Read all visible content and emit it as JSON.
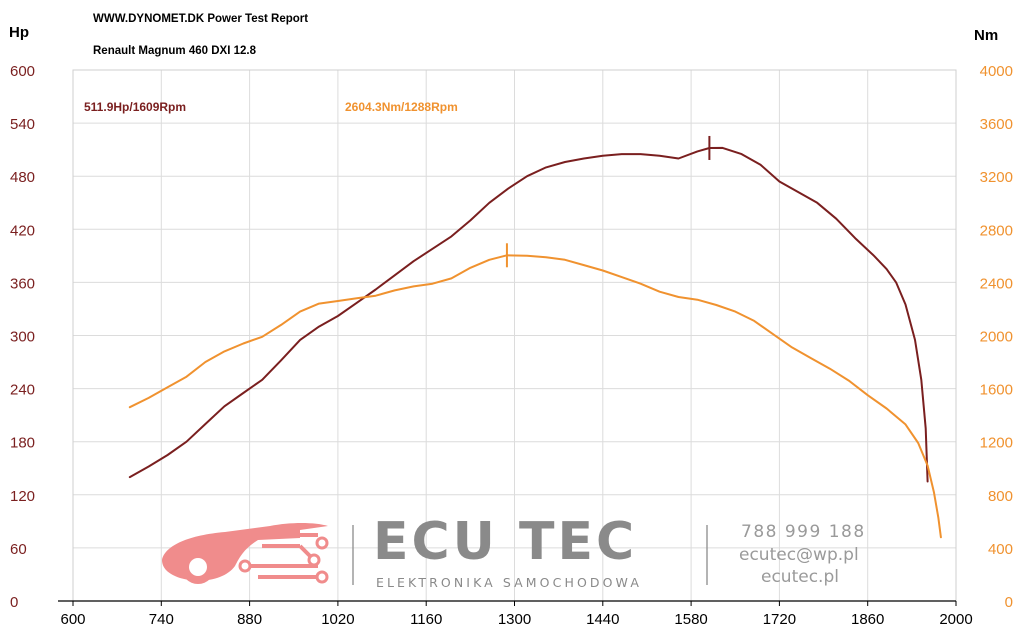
{
  "header": {
    "title": "WWW.DYNOMET.DK  Power Test Report",
    "vehicle": "Renault Magnum 460 DXI 12.8"
  },
  "watermark": {
    "brand": "ECU TEC",
    "tagline": "ELEKTRONIKA SAMOCHODOWA",
    "phone": "788 999 188",
    "email": "ecutec@wp.pl",
    "website": "ecutec.pl",
    "logo_icon": "car-circuit-logo-icon",
    "logo_color": "#f08c8c"
  },
  "chart_data": {
    "type": "line",
    "x_axis": {
      "range": [
        600,
        2000
      ],
      "ticks": [
        600,
        740,
        880,
        1020,
        1160,
        1300,
        1440,
        1580,
        1720,
        1860,
        2000
      ],
      "grid": true
    },
    "y_axis_left": {
      "unit_label": "Hp",
      "range": [
        0,
        600
      ],
      "ticks": [
        0,
        60,
        120,
        180,
        240,
        300,
        360,
        420,
        480,
        540,
        600
      ],
      "color": "#7a1f1f"
    },
    "y_axis_right": {
      "unit_label": "Nm",
      "range": [
        0,
        4000
      ],
      "ticks": [
        0,
        400,
        800,
        1200,
        1600,
        2000,
        2400,
        2800,
        3200,
        3600,
        4000
      ],
      "color": "#f0922f"
    },
    "series": [
      {
        "key": "power",
        "axis": "left",
        "color": "#7a1f1f",
        "peak_label": "511.9Hp/1609Rpm",
        "peak": {
          "x": 1609,
          "y": 511.9
        },
        "points": [
          [
            690,
            140
          ],
          [
            720,
            152
          ],
          [
            750,
            165
          ],
          [
            780,
            180
          ],
          [
            810,
            200
          ],
          [
            840,
            220
          ],
          [
            870,
            235
          ],
          [
            900,
            250
          ],
          [
            930,
            272
          ],
          [
            960,
            295
          ],
          [
            990,
            310
          ],
          [
            1020,
            322
          ],
          [
            1050,
            337
          ],
          [
            1080,
            352
          ],
          [
            1110,
            368
          ],
          [
            1140,
            384
          ],
          [
            1170,
            398
          ],
          [
            1200,
            412
          ],
          [
            1230,
            430
          ],
          [
            1260,
            450
          ],
          [
            1290,
            466
          ],
          [
            1320,
            480
          ],
          [
            1350,
            490
          ],
          [
            1380,
            496
          ],
          [
            1410,
            500
          ],
          [
            1440,
            503
          ],
          [
            1470,
            505
          ],
          [
            1500,
            505
          ],
          [
            1530,
            503
          ],
          [
            1560,
            500
          ],
          [
            1590,
            508
          ],
          [
            1609,
            511.9
          ],
          [
            1630,
            512
          ],
          [
            1660,
            505
          ],
          [
            1690,
            493
          ],
          [
            1720,
            474
          ],
          [
            1750,
            462
          ],
          [
            1780,
            450
          ],
          [
            1810,
            432
          ],
          [
            1840,
            410
          ],
          [
            1870,
            390
          ],
          [
            1890,
            375
          ],
          [
            1905,
            360
          ],
          [
            1920,
            335
          ],
          [
            1935,
            295
          ],
          [
            1945,
            250
          ],
          [
            1952,
            195
          ],
          [
            1955,
            135
          ]
        ]
      },
      {
        "key": "torque",
        "axis": "right",
        "color": "#f0922f",
        "peak_label": "2604.3Nm/1288Rpm",
        "peak": {
          "x": 1288,
          "y": 2604.3
        },
        "points": [
          [
            690,
            1460
          ],
          [
            720,
            1530
          ],
          [
            750,
            1610
          ],
          [
            780,
            1690
          ],
          [
            810,
            1800
          ],
          [
            840,
            1880
          ],
          [
            870,
            1940
          ],
          [
            900,
            1990
          ],
          [
            930,
            2080
          ],
          [
            960,
            2180
          ],
          [
            990,
            2240
          ],
          [
            1020,
            2260
          ],
          [
            1050,
            2280
          ],
          [
            1080,
            2300
          ],
          [
            1110,
            2340
          ],
          [
            1140,
            2370
          ],
          [
            1170,
            2390
          ],
          [
            1200,
            2430
          ],
          [
            1230,
            2510
          ],
          [
            1260,
            2570
          ],
          [
            1288,
            2604.3
          ],
          [
            1320,
            2600
          ],
          [
            1350,
            2590
          ],
          [
            1380,
            2570
          ],
          [
            1410,
            2530
          ],
          [
            1440,
            2490
          ],
          [
            1470,
            2440
          ],
          [
            1500,
            2390
          ],
          [
            1530,
            2330
          ],
          [
            1560,
            2290
          ],
          [
            1590,
            2270
          ],
          [
            1620,
            2230
          ],
          [
            1650,
            2180
          ],
          [
            1680,
            2110
          ],
          [
            1710,
            2010
          ],
          [
            1740,
            1910
          ],
          [
            1770,
            1830
          ],
          [
            1800,
            1750
          ],
          [
            1830,
            1660
          ],
          [
            1860,
            1550
          ],
          [
            1890,
            1450
          ],
          [
            1920,
            1330
          ],
          [
            1940,
            1190
          ],
          [
            1955,
            1020
          ],
          [
            1965,
            820
          ],
          [
            1972,
            630
          ],
          [
            1976,
            480
          ]
        ]
      }
    ],
    "grid": true
  }
}
